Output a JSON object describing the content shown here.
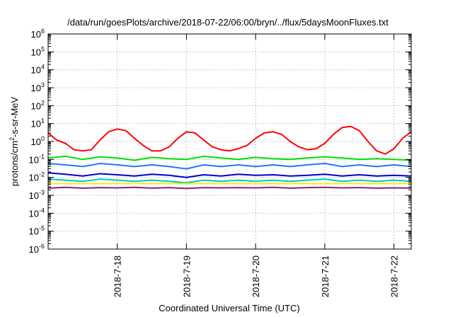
{
  "chart_data": {
    "type": "line",
    "title": "/data/run/goesPlots/archive/2018-07-22/06:00/bryn/../flux/5daysMoonFluxes.txt",
    "xlabel": "Coordinated Universal Time (UTC)",
    "ylabel": "protons/cm2-s-sr-MeV",
    "ylabel_parts": {
      "pre": "protons/cm",
      "sup": "2",
      "post": "-s-sr-MeV"
    },
    "y_scale": "log",
    "ylim_exp": [
      -6,
      6
    ],
    "y_ticks": [
      {
        "exp": -6,
        "label": "10",
        "sup": "-6"
      },
      {
        "exp": -5,
        "label": "10",
        "sup": "-5"
      },
      {
        "exp": -4,
        "label": "10",
        "sup": "-4"
      },
      {
        "exp": -3,
        "label": "10",
        "sup": "-3"
      },
      {
        "exp": -2,
        "label": "10",
        "sup": "-2"
      },
      {
        "exp": -1,
        "label": "10",
        "sup": "-1"
      },
      {
        "exp": 0,
        "label": "10",
        "sup": "0"
      },
      {
        "exp": 1,
        "label": "10",
        "sup": "1"
      },
      {
        "exp": 2,
        "label": "10",
        "sup": "2"
      },
      {
        "exp": 3,
        "label": "10",
        "sup": "3"
      },
      {
        "exp": 4,
        "label": "10",
        "sup": "4"
      },
      {
        "exp": 5,
        "label": "10",
        "sup": "5"
      },
      {
        "exp": 6,
        "label": "10",
        "sup": "6"
      }
    ],
    "x_range": [
      "2018-07-17 00:00",
      "2018-07-22 06:00"
    ],
    "x_ticks": [
      "2018-7-18",
      "2018-7-19",
      "2018-7-20",
      "2018-7-21",
      "2018-7-22"
    ],
    "grid": true,
    "series": [
      {
        "color": "#ff0000",
        "x": [
          "2018-07-17 00:00",
          "2018-07-17 03:00",
          "2018-07-17 06:00",
          "2018-07-17 09:00",
          "2018-07-17 12:00",
          "2018-07-17 15:00",
          "2018-07-17 18:00",
          "2018-07-17 21:00",
          "2018-07-18 00:00",
          "2018-07-18 03:00",
          "2018-07-18 06:00",
          "2018-07-18 09:00",
          "2018-07-18 12:00",
          "2018-07-18 15:00",
          "2018-07-18 18:00",
          "2018-07-18 21:00",
          "2018-07-19 00:00",
          "2018-07-19 03:00",
          "2018-07-19 06:00",
          "2018-07-19 09:00",
          "2018-07-19 12:00",
          "2018-07-19 15:00",
          "2018-07-19 18:00",
          "2018-07-19 21:00",
          "2018-07-20 00:00",
          "2018-07-20 03:00",
          "2018-07-20 06:00",
          "2018-07-20 09:00",
          "2018-07-20 12:00",
          "2018-07-20 15:00",
          "2018-07-20 18:00",
          "2018-07-20 21:00",
          "2018-07-21 00:00",
          "2018-07-21 03:00",
          "2018-07-21 06:00",
          "2018-07-21 09:00",
          "2018-07-21 12:00",
          "2018-07-21 15:00",
          "2018-07-21 18:00",
          "2018-07-21 21:00",
          "2018-07-22 00:00",
          "2018-07-22 03:00",
          "2018-07-22 06:00"
        ],
        "y": [
          3,
          1.2,
          0.8,
          0.35,
          0.3,
          0.35,
          1.2,
          3.5,
          5,
          4,
          1.5,
          0.6,
          0.3,
          0.3,
          0.5,
          1.5,
          3.5,
          3,
          1.2,
          0.5,
          0.35,
          0.3,
          0.4,
          0.6,
          1.5,
          3,
          3.5,
          2.5,
          1,
          0.5,
          0.35,
          0.4,
          0.8,
          2.5,
          6,
          7,
          4,
          1,
          0.3,
          0.2,
          0.4,
          1.5,
          3.5
        ]
      },
      {
        "color": "#00e000",
        "x": [
          "2018-07-17 00:00",
          "2018-07-17 06:00",
          "2018-07-17 12:00",
          "2018-07-17 18:00",
          "2018-07-18 00:00",
          "2018-07-18 06:00",
          "2018-07-18 12:00",
          "2018-07-18 18:00",
          "2018-07-19 00:00",
          "2018-07-19 06:00",
          "2018-07-19 12:00",
          "2018-07-19 18:00",
          "2018-07-20 00:00",
          "2018-07-20 06:00",
          "2018-07-20 12:00",
          "2018-07-20 18:00",
          "2018-07-21 00:00",
          "2018-07-21 06:00",
          "2018-07-21 12:00",
          "2018-07-21 18:00",
          "2018-07-22 00:00",
          "2018-07-22 06:00"
        ],
        "y": [
          0.12,
          0.15,
          0.1,
          0.14,
          0.12,
          0.09,
          0.13,
          0.11,
          0.1,
          0.15,
          0.12,
          0.1,
          0.13,
          0.11,
          0.1,
          0.12,
          0.14,
          0.12,
          0.1,
          0.11,
          0.1,
          0.09
        ]
      },
      {
        "color": "#1e78ff",
        "x": [
          "2018-07-17 00:00",
          "2018-07-17 06:00",
          "2018-07-17 12:00",
          "2018-07-17 18:00",
          "2018-07-18 00:00",
          "2018-07-18 06:00",
          "2018-07-18 12:00",
          "2018-07-18 18:00",
          "2018-07-19 00:00",
          "2018-07-19 06:00",
          "2018-07-19 12:00",
          "2018-07-19 18:00",
          "2018-07-20 00:00",
          "2018-07-20 06:00",
          "2018-07-20 12:00",
          "2018-07-20 18:00",
          "2018-07-21 00:00",
          "2018-07-21 06:00",
          "2018-07-21 12:00",
          "2018-07-21 18:00",
          "2018-07-22 00:00",
          "2018-07-22 06:00"
        ],
        "y": [
          0.06,
          0.05,
          0.04,
          0.06,
          0.05,
          0.04,
          0.05,
          0.04,
          0.03,
          0.05,
          0.04,
          0.05,
          0.04,
          0.05,
          0.04,
          0.05,
          0.06,
          0.04,
          0.05,
          0.04,
          0.05,
          0.04
        ]
      },
      {
        "color": "#0000c8",
        "x": [
          "2018-07-17 00:00",
          "2018-07-17 06:00",
          "2018-07-17 12:00",
          "2018-07-17 18:00",
          "2018-07-18 00:00",
          "2018-07-18 06:00",
          "2018-07-18 12:00",
          "2018-07-18 18:00",
          "2018-07-19 00:00",
          "2018-07-19 06:00",
          "2018-07-19 12:00",
          "2018-07-19 18:00",
          "2018-07-20 00:00",
          "2018-07-20 06:00",
          "2018-07-20 12:00",
          "2018-07-20 18:00",
          "2018-07-21 00:00",
          "2018-07-21 06:00",
          "2018-07-21 12:00",
          "2018-07-21 18:00",
          "2018-07-22 00:00",
          "2018-07-22 06:00"
        ],
        "y": [
          0.018,
          0.015,
          0.012,
          0.016,
          0.014,
          0.012,
          0.015,
          0.013,
          0.01,
          0.014,
          0.012,
          0.015,
          0.013,
          0.014,
          0.012,
          0.013,
          0.015,
          0.012,
          0.014,
          0.012,
          0.013,
          0.012
        ]
      },
      {
        "color": "#00c8c8",
        "x": [
          "2018-07-17 00:00",
          "2018-07-17 06:00",
          "2018-07-17 12:00",
          "2018-07-17 18:00",
          "2018-07-18 00:00",
          "2018-07-18 06:00",
          "2018-07-18 12:00",
          "2018-07-18 18:00",
          "2018-07-19 00:00",
          "2018-07-19 06:00",
          "2018-07-19 12:00",
          "2018-07-19 18:00",
          "2018-07-20 00:00",
          "2018-07-20 06:00",
          "2018-07-20 12:00",
          "2018-07-20 18:00",
          "2018-07-21 00:00",
          "2018-07-21 06:00",
          "2018-07-21 12:00",
          "2018-07-21 18:00",
          "2018-07-22 00:00",
          "2018-07-22 06:00"
        ],
        "y": [
          0.008,
          0.007,
          0.006,
          0.008,
          0.007,
          0.006,
          0.007,
          0.006,
          0.005,
          0.007,
          0.006,
          0.007,
          0.006,
          0.007,
          0.006,
          0.007,
          0.008,
          0.006,
          0.007,
          0.006,
          0.007,
          0.006
        ]
      },
      {
        "color": "#f0f000",
        "x": [
          "2018-07-17 00:00",
          "2018-07-18 00:00",
          "2018-07-19 00:00",
          "2018-07-20 00:00",
          "2018-07-21 00:00",
          "2018-07-22 00:00",
          "2018-07-22 06:00"
        ],
        "y": [
          0.0045,
          0.0045,
          0.0045,
          0.0045,
          0.0045,
          0.0045,
          0.0045
        ]
      },
      {
        "color": "#8c1e8c",
        "x": [
          "2018-07-17 00:00",
          "2018-07-17 06:00",
          "2018-07-17 12:00",
          "2018-07-17 18:00",
          "2018-07-18 00:00",
          "2018-07-18 06:00",
          "2018-07-18 12:00",
          "2018-07-18 18:00",
          "2018-07-19 00:00",
          "2018-07-19 06:00",
          "2018-07-19 12:00",
          "2018-07-19 18:00",
          "2018-07-20 00:00",
          "2018-07-20 06:00",
          "2018-07-20 12:00",
          "2018-07-20 18:00",
          "2018-07-21 00:00",
          "2018-07-21 06:00",
          "2018-07-21 12:00",
          "2018-07-21 18:00",
          "2018-07-22 00:00",
          "2018-07-22 06:00"
        ],
        "y": [
          0.0025,
          0.0028,
          0.0025,
          0.0027,
          0.0026,
          0.0028,
          0.0025,
          0.0027,
          0.0024,
          0.0027,
          0.0026,
          0.0027,
          0.0026,
          0.0028,
          0.0025,
          0.0027,
          0.0028,
          0.0026,
          0.0027,
          0.0025,
          0.0026,
          0.0025
        ]
      }
    ]
  }
}
